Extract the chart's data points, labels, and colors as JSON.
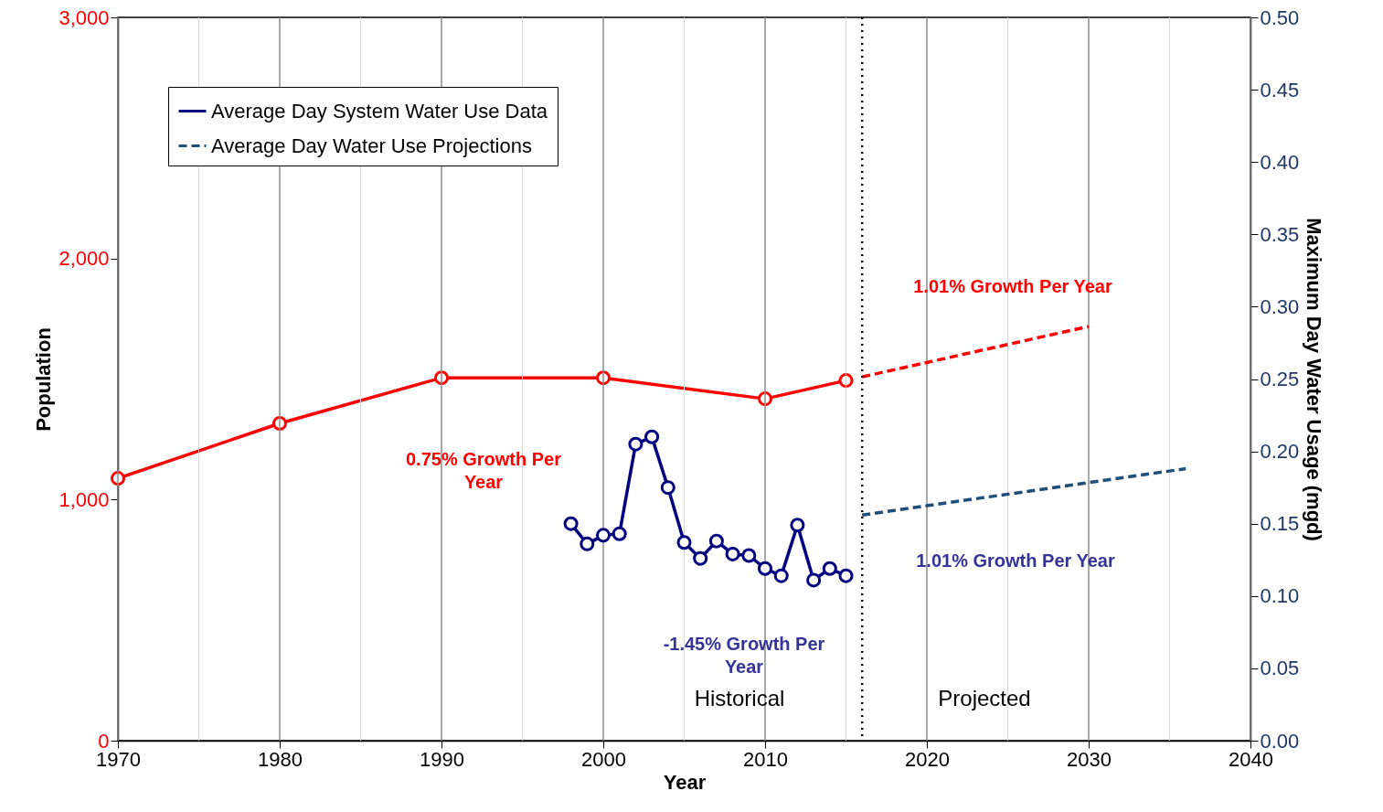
{
  "chart_data": {
    "type": "line",
    "xlabel": "Year",
    "ylabel": "Population",
    "y2label": "Maximum Day Water Usage (mgd)",
    "xlim": [
      1970,
      2040
    ],
    "xticks": [
      1970,
      1980,
      1990,
      2000,
      2010,
      2020,
      2030,
      2040
    ],
    "ylim": [
      0,
      3000
    ],
    "yticks": [
      {
        "value": 0,
        "label": "0"
      },
      {
        "value": 1000,
        "label": "1,000"
      },
      {
        "value": 2000,
        "label": "2,000"
      },
      {
        "value": 3000,
        "label": "3,000"
      }
    ],
    "y2lim": [
      0,
      0.5
    ],
    "y2ticks": [
      {
        "value": 0,
        "label": "0.00"
      },
      {
        "value": 0.05,
        "label": "0.05"
      },
      {
        "value": 0.1,
        "label": "0.10"
      },
      {
        "value": 0.15,
        "label": "0.15"
      },
      {
        "value": 0.2,
        "label": "0.20"
      },
      {
        "value": 0.25,
        "label": "0.25"
      },
      {
        "value": 0.3,
        "label": "0.30"
      },
      {
        "value": 0.35,
        "label": "0.35"
      },
      {
        "value": 0.4,
        "label": "0.40"
      },
      {
        "value": 0.45,
        "label": "0.45"
      },
      {
        "value": 0.5,
        "label": "0.50"
      }
    ],
    "grid": "x",
    "legend": "top left",
    "series": [
      {
        "color": "#ff0000",
        "marker": "circle",
        "line_style": "solid",
        "x": [
          1970,
          1980,
          1990,
          2000,
          2010,
          2015
        ],
        "values": [
          1088,
          1316,
          1505,
          1505,
          1418,
          1494
        ]
      },
      {
        "color": "#ff0000",
        "marker": "none",
        "line_style": "dashed",
        "x": [
          2016,
          2030
        ],
        "values": [
          1509,
          1718
        ]
      },
      {
        "name": "Average Day System Water Use Data",
        "axis": "y2",
        "color": "#000080",
        "marker": "circle",
        "line_style": "solid",
        "x": [
          1998,
          1999,
          2000,
          2001,
          2002,
          2003,
          2004,
          2005,
          2006,
          2007,
          2008,
          2009,
          2010,
          2011,
          2012,
          2013,
          2014,
          2015
        ],
        "values": [
          0.15,
          0.136,
          0.142,
          0.143,
          0.205,
          0.21,
          0.175,
          0.137,
          0.126,
          0.138,
          0.129,
          0.128,
          0.119,
          0.114,
          0.149,
          0.111,
          0.119,
          0.114
        ]
      },
      {
        "name": "Average Day Water Use Projections",
        "axis": "y2",
        "color": "#1f4e79",
        "marker": "none",
        "line_style": "dashed",
        "x": [
          2016,
          2036
        ],
        "values": [
          0.156,
          0.188
        ]
      }
    ],
    "ref_lines": [
      {
        "axis": "x",
        "value": 2016,
        "line_style": "dotted",
        "color": "#000000"
      }
    ],
    "annotations": [
      "1.01% Growth Per Year",
      "0.75% Growth Per\nYear",
      "1.01% Growth Per Year",
      "-1.45% Growth Per\nYear",
      "Historical",
      "Projected"
    ]
  }
}
